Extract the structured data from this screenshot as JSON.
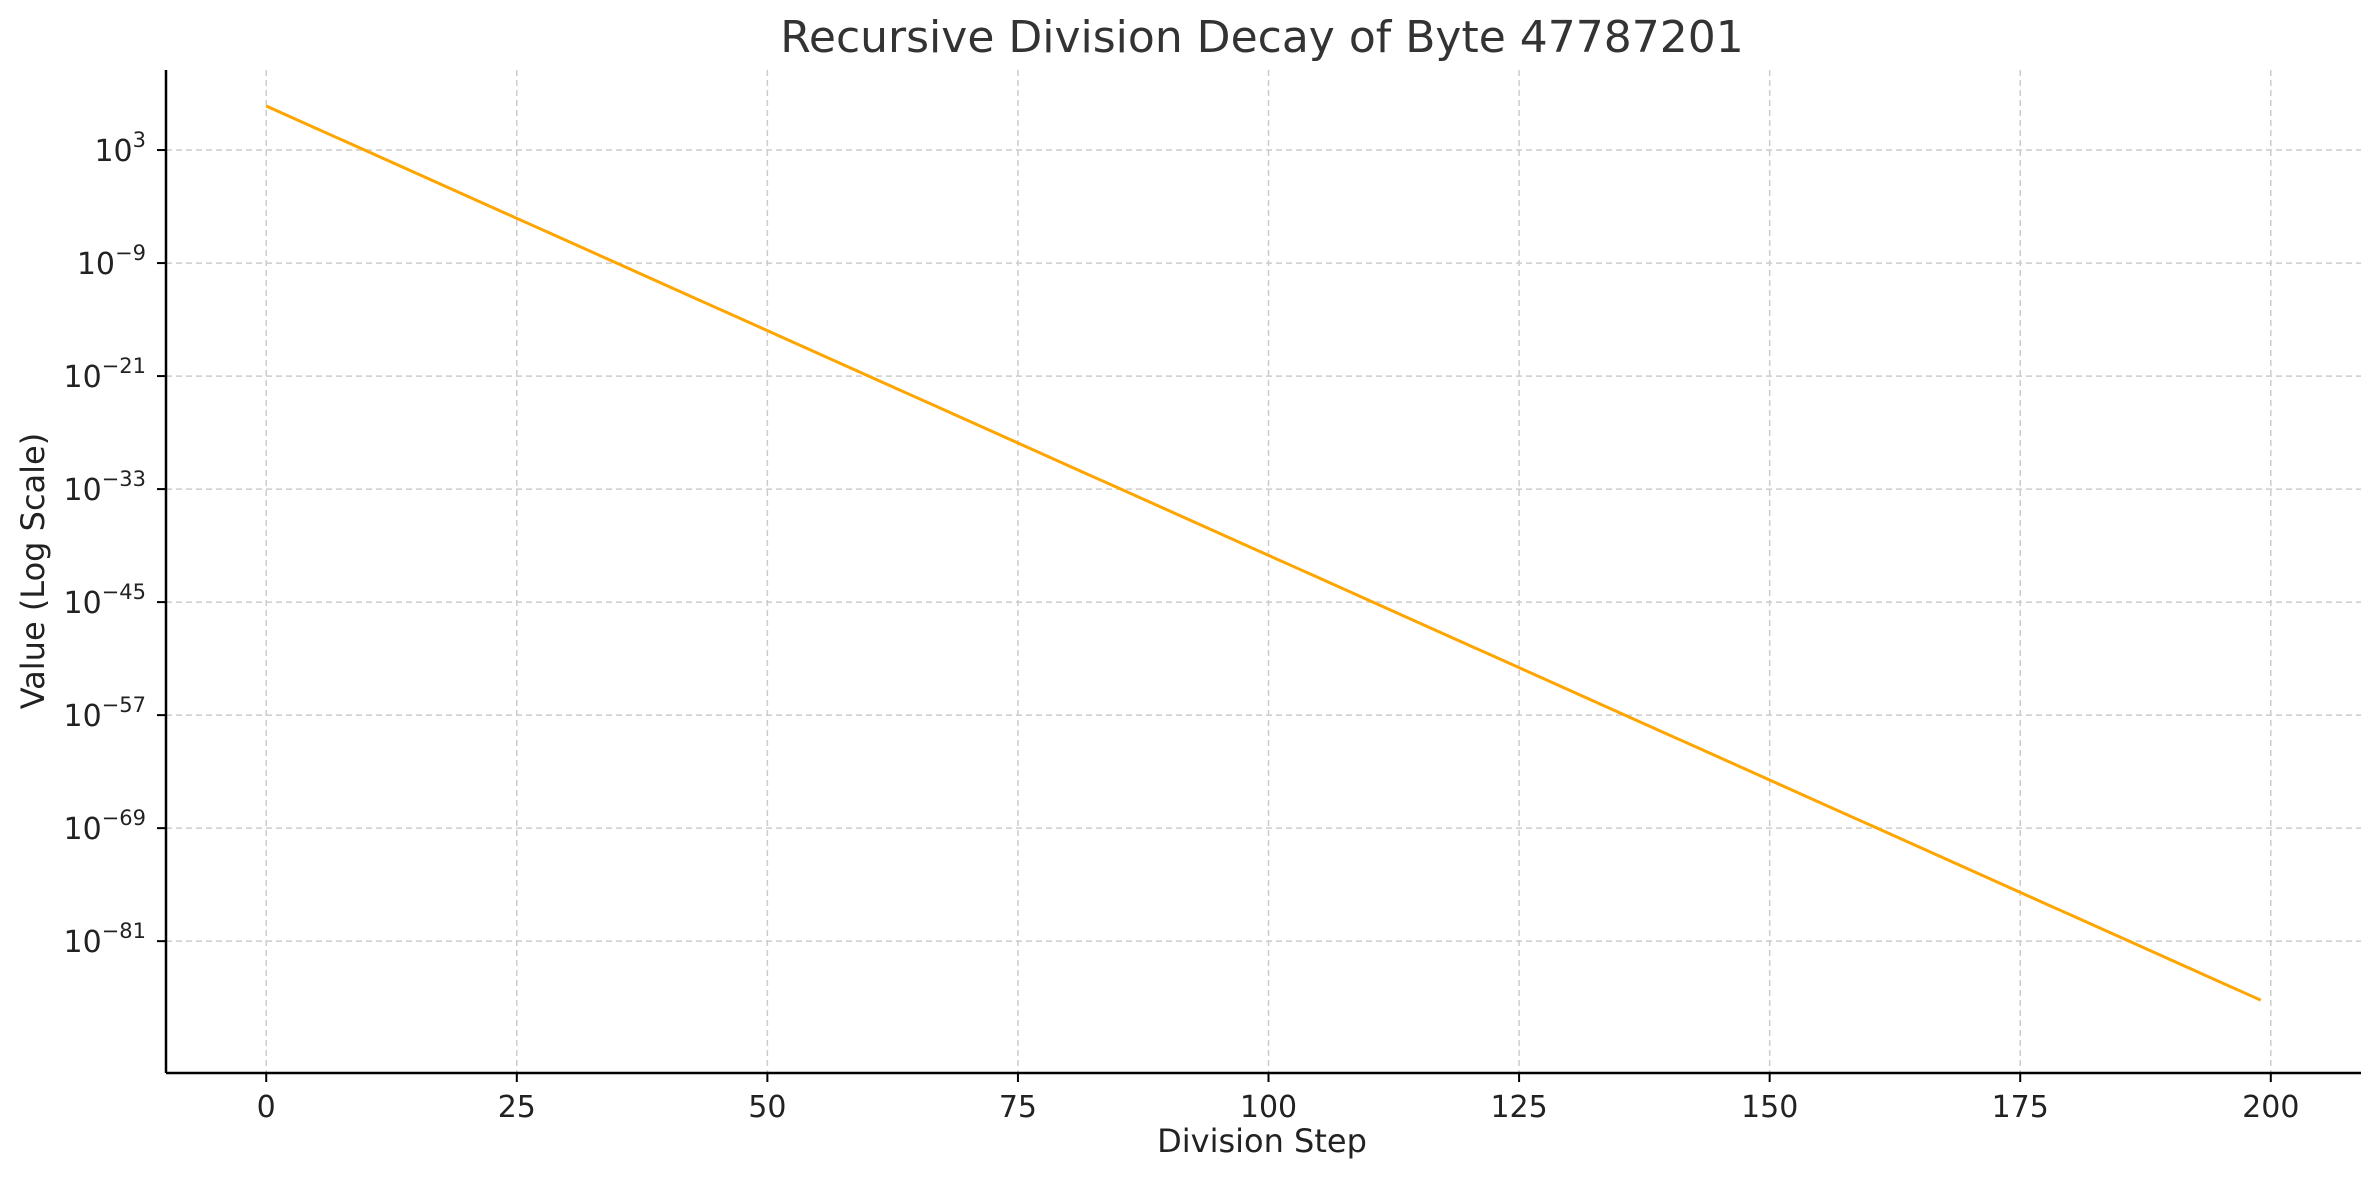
{
  "chart_data": {
    "type": "line",
    "title": "Recursive Division Decay of Byte 47787201",
    "xlabel": "Division Step",
    "ylabel": "Value (Log Scale)",
    "yscale": "log",
    "grid": true,
    "xlim": [
      -10,
      209
    ],
    "ylim_exp": [
      -95,
      11.5
    ],
    "x_ticks": [
      0,
      25,
      50,
      75,
      100,
      125,
      150,
      175,
      200
    ],
    "y_ticks": [
      {
        "base": "10",
        "exp": "3"
      },
      {
        "base": "10",
        "exp": "−9"
      },
      {
        "base": "10",
        "exp": "−21"
      },
      {
        "base": "10",
        "exp": "−33"
      },
      {
        "base": "10",
        "exp": "−45"
      },
      {
        "base": "10",
        "exp": "−57"
      },
      {
        "base": "10",
        "exp": "−69"
      },
      {
        "base": "10",
        "exp": "−81"
      }
    ],
    "series": [
      {
        "color": "#FFA500",
        "x_start": 0,
        "x_end": 199,
        "value_start": 47787201,
        "divisor_per_step": 3
      }
    ]
  }
}
